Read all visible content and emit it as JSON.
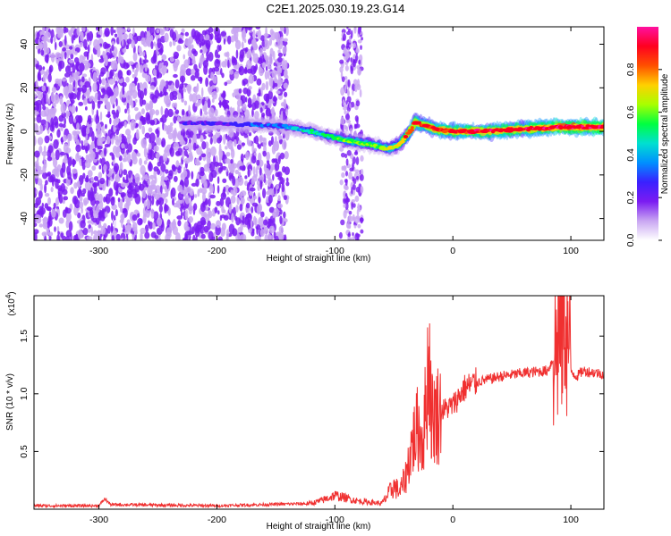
{
  "title": "C2E1.2025.030.19.23.G14",
  "chart_data": [
    {
      "type": "heatmap",
      "name": "spectrogram",
      "xlabel": "Height of straight line (km)",
      "ylabel": "Frequency (Hz)",
      "xlim": [
        -355,
        128
      ],
      "ylim": [
        -50,
        48
      ],
      "xticks": [
        -300,
        -200,
        -100,
        0,
        100
      ],
      "xtick_labels": [
        "-300",
        "-200",
        "-100",
        "0",
        "100"
      ],
      "yticks": [
        -40,
        -20,
        0,
        20,
        40
      ],
      "ytick_labels": [
        "-40",
        "-20",
        "0",
        "20",
        "40"
      ],
      "colorbar": {
        "label": "Normalized spectral amplitude",
        "range": [
          0.0,
          1.0
        ],
        "ticks": [
          0.0,
          0.2,
          0.4,
          0.6,
          0.8
        ],
        "tick_labels": [
          "0.0",
          "0.2",
          "0.4",
          "0.6",
          "0.8"
        ],
        "colors": [
          "#ffffff",
          "#c9a6f2",
          "#7b1cf2",
          "#3a20ff",
          "#0090ff",
          "#00e0d0",
          "#00ff40",
          "#a8ff00",
          "#ffd000",
          "#ff5000",
          "#ff0020",
          "#ff10a0"
        ]
      },
      "ridge": {
        "x": [
          -230,
          -160,
          -140,
          -120,
          -100,
          -90,
          -70,
          -55,
          -45,
          -38,
          -32,
          -25,
          -15,
          0,
          30,
          60,
          90,
          100,
          128
        ],
        "y": [
          4,
          3,
          2,
          0,
          -3,
          -4,
          -6,
          -8,
          -6,
          -1,
          4,
          3,
          1,
          0,
          0,
          1,
          2,
          2,
          2
        ],
        "amplitude": [
          0.2,
          0.3,
          0.35,
          0.5,
          0.55,
          0.6,
          0.6,
          0.65,
          0.7,
          0.8,
          0.85,
          0.85,
          0.85,
          0.9,
          0.9,
          0.9,
          0.95,
          0.95,
          0.95
        ]
      },
      "noise_region": {
        "x_range": [
          -355,
          -140
        ],
        "amplitude": 0.15
      }
    },
    {
      "type": "line",
      "name": "snr",
      "xlabel": "Height of straight line (km)",
      "ylabel": "SNR (10 * v/v)",
      "y_multiplier": "(x10",
      "y_exponent": "4",
      "y_exponent_close": ")",
      "xlim": [
        -355,
        128
      ],
      "ylim": [
        0,
        1.85
      ],
      "xticks": [
        -300,
        -200,
        -100,
        0,
        100
      ],
      "xtick_labels": [
        "-300",
        "-200",
        "-100",
        "0",
        "100"
      ],
      "yticks": [
        0.5,
        1.0,
        1.5
      ],
      "ytick_labels": [
        "0.5",
        "1.0",
        "1.5"
      ],
      "color": "#f03030",
      "series": {
        "x": [
          -355,
          -300,
          -295,
          -290,
          -200,
          -120,
          -110,
          -100,
          -80,
          -60,
          -50,
          -45,
          -40,
          -35,
          -30,
          -25,
          -20,
          -18,
          -10,
          0,
          10,
          20,
          40,
          60,
          80,
          85,
          90,
          95,
          100,
          105,
          110,
          128
        ],
        "y": [
          0.03,
          0.03,
          0.09,
          0.04,
          0.03,
          0.05,
          0.08,
          0.12,
          0.07,
          0.05,
          0.2,
          0.15,
          0.28,
          0.55,
          0.7,
          0.6,
          1.35,
          0.8,
          0.85,
          0.9,
          1.05,
          1.1,
          1.15,
          1.18,
          1.2,
          1.3,
          1.5,
          1.8,
          1.2,
          1.15,
          1.2,
          1.17
        ]
      }
    }
  ]
}
